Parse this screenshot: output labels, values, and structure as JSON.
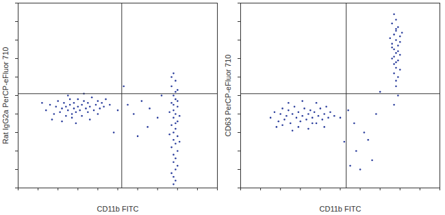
{
  "chart_data": [
    {
      "type": "scatter",
      "x_label": "CD11b FITC",
      "y_label": "Rat IgG2a PerCP-eFluor 710",
      "xlim": [
        0,
        100
      ],
      "ylim": [
        0,
        100
      ],
      "xticks": [
        0,
        10,
        20,
        30,
        40,
        50,
        60,
        70,
        80,
        90,
        100
      ],
      "yticks": [
        0,
        10,
        20,
        30,
        40,
        50,
        60,
        70,
        80,
        90,
        100
      ],
      "tick_labels": false,
      "color": "#2a3d9c",
      "marker": "dot",
      "quadrant_gate": {
        "x": 52,
        "y": 51
      },
      "points": [
        [
          14,
          42
        ],
        [
          16,
          45
        ],
        [
          18,
          40
        ],
        [
          19,
          44
        ],
        [
          20,
          47
        ],
        [
          21,
          41
        ],
        [
          22,
          43
        ],
        [
          23,
          46
        ],
        [
          24,
          39
        ],
        [
          24,
          44
        ],
        [
          25,
          42
        ],
        [
          26,
          48
        ],
        [
          26,
          45
        ],
        [
          27,
          40
        ],
        [
          28,
          43
        ],
        [
          28,
          46
        ],
        [
          29,
          41
        ],
        [
          30,
          44
        ],
        [
          30,
          48
        ],
        [
          31,
          42
        ],
        [
          32,
          45
        ],
        [
          32,
          39
        ],
        [
          33,
          47
        ],
        [
          34,
          43
        ],
        [
          35,
          41
        ],
        [
          35,
          46
        ],
        [
          36,
          44
        ],
        [
          37,
          49
        ],
        [
          38,
          42
        ],
        [
          39,
          45
        ],
        [
          40,
          47
        ],
        [
          41,
          43
        ],
        [
          42,
          46
        ],
        [
          43,
          44
        ],
        [
          44,
          48
        ],
        [
          46,
          45
        ],
        [
          17,
          37
        ],
        [
          22,
          36
        ],
        [
          29,
          35
        ],
        [
          36,
          37
        ],
        [
          12,
          46
        ],
        [
          25,
          50
        ],
        [
          33,
          51
        ],
        [
          40,
          40
        ],
        [
          27,
          38
        ],
        [
          50,
          42
        ],
        [
          55,
          45
        ],
        [
          58,
          40
        ],
        [
          62,
          47
        ],
        [
          66,
          43
        ],
        [
          70,
          38
        ],
        [
          48,
          30
        ],
        [
          60,
          28
        ],
        [
          72,
          50
        ],
        [
          53,
          55
        ],
        [
          65,
          33
        ],
        [
          78,
          62
        ],
        [
          79,
          58
        ],
        [
          77,
          55
        ],
        [
          80,
          53
        ],
        [
          78,
          50
        ],
        [
          79,
          48
        ],
        [
          77,
          46
        ],
        [
          80,
          44
        ],
        [
          78,
          42
        ],
        [
          79,
          40
        ],
        [
          78,
          38
        ],
        [
          80,
          36
        ],
        [
          77,
          34
        ],
        [
          79,
          32
        ],
        [
          78,
          30
        ],
        [
          80,
          28
        ],
        [
          78,
          26
        ],
        [
          79,
          24
        ],
        [
          77,
          22
        ],
        [
          80,
          20
        ],
        [
          78,
          18
        ],
        [
          79,
          16
        ],
        [
          78,
          14
        ],
        [
          80,
          12
        ],
        [
          79,
          10
        ],
        [
          77,
          8
        ],
        [
          78,
          6
        ],
        [
          79,
          4
        ],
        [
          78,
          2
        ],
        [
          80,
          47
        ],
        [
          76,
          41
        ],
        [
          81,
          39
        ],
        [
          76,
          29
        ],
        [
          81,
          25
        ],
        [
          79,
          35
        ],
        [
          78,
          45
        ],
        [
          79,
          52
        ],
        [
          77,
          60
        ]
      ]
    },
    {
      "type": "scatter",
      "x_label": "CD11b FITC",
      "y_label": "CD63 PerCP-eFluor 710",
      "xlim": [
        0,
        100
      ],
      "ylim": [
        0,
        100
      ],
      "xticks": [
        0,
        10,
        20,
        30,
        40,
        50,
        60,
        70,
        80,
        90,
        100
      ],
      "yticks": [
        0,
        10,
        20,
        30,
        40,
        50,
        60,
        70,
        80,
        90,
        100
      ],
      "tick_labels": false,
      "color": "#2a3d9c",
      "marker": "dot",
      "quadrant_gate": {
        "x": 53,
        "y": 51
      },
      "points": [
        [
          15,
          38
        ],
        [
          17,
          41
        ],
        [
          19,
          36
        ],
        [
          20,
          40
        ],
        [
          21,
          43
        ],
        [
          22,
          37
        ],
        [
          23,
          39
        ],
        [
          24,
          42
        ],
        [
          25,
          35
        ],
        [
          26,
          40
        ],
        [
          27,
          44
        ],
        [
          28,
          38
        ],
        [
          29,
          41
        ],
        [
          30,
          36
        ],
        [
          31,
          39
        ],
        [
          32,
          43
        ],
        [
          33,
          37
        ],
        [
          34,
          40
        ],
        [
          35,
          42
        ],
        [
          36,
          38
        ],
        [
          37,
          41
        ],
        [
          38,
          35
        ],
        [
          39,
          39
        ],
        [
          40,
          43
        ],
        [
          41,
          37
        ],
        [
          42,
          40
        ],
        [
          43,
          44
        ],
        [
          44,
          38
        ],
        [
          45,
          41
        ],
        [
          47,
          39
        ],
        [
          18,
          33
        ],
        [
          26,
          31
        ],
        [
          34,
          32
        ],
        [
          42,
          33
        ],
        [
          24,
          46
        ],
        [
          31,
          47
        ],
        [
          38,
          46
        ],
        [
          29,
          33
        ],
        [
          36,
          35
        ],
        [
          21,
          34
        ],
        [
          50,
          38
        ],
        [
          54,
          42
        ],
        [
          57,
          35
        ],
        [
          52,
          25
        ],
        [
          58,
          20
        ],
        [
          62,
          30
        ],
        [
          66,
          15
        ],
        [
          60,
          10
        ],
        [
          64,
          26
        ],
        [
          55,
          12
        ],
        [
          68,
          40
        ],
        [
          70,
          52
        ],
        [
          77,
          94
        ],
        [
          78,
          91
        ],
        [
          76,
          89
        ],
        [
          79,
          87
        ],
        [
          78,
          85
        ],
        [
          77,
          83
        ],
        [
          80,
          82
        ],
        [
          78,
          80
        ],
        [
          76,
          78
        ],
        [
          79,
          77
        ],
        [
          77,
          75
        ],
        [
          78,
          73
        ],
        [
          80,
          72
        ],
        [
          76,
          70
        ],
        [
          79,
          69
        ],
        [
          77,
          67
        ],
        [
          78,
          65
        ],
        [
          80,
          64
        ],
        [
          77,
          62
        ],
        [
          79,
          60
        ],
        [
          78,
          58
        ],
        [
          76,
          76
        ],
        [
          80,
          79
        ],
        [
          78,
          86
        ],
        [
          77,
          71
        ],
        [
          79,
          74
        ],
        [
          78,
          68
        ],
        [
          81,
          84
        ],
        [
          75,
          81
        ],
        [
          78,
          55
        ],
        [
          79,
          50
        ],
        [
          77,
          45
        ]
      ]
    }
  ]
}
